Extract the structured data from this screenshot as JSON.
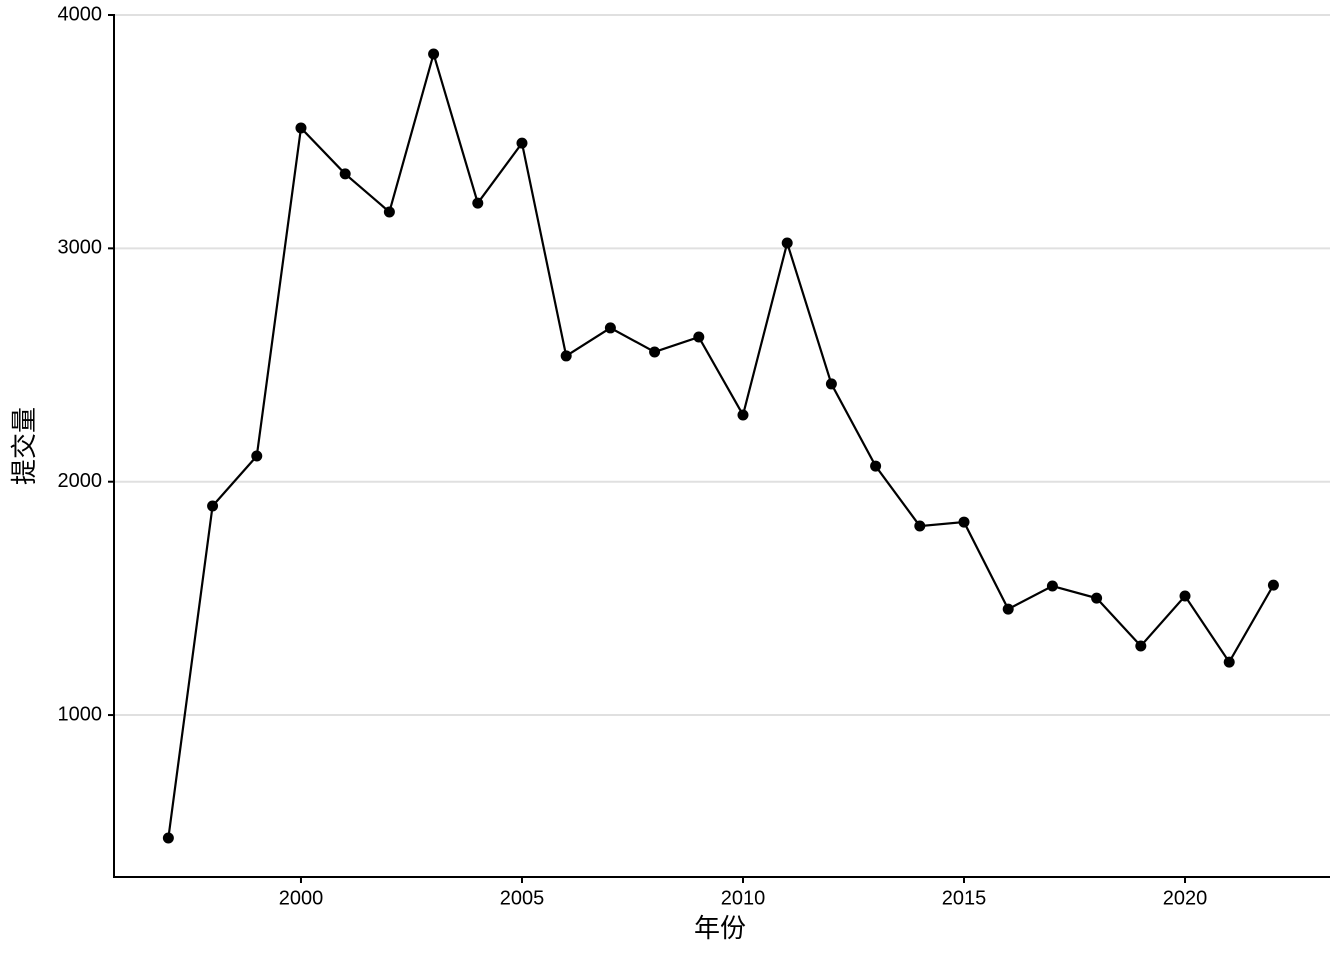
{
  "chart_data": {
    "type": "line",
    "x_label": "年份",
    "y_label": "提交量",
    "x": [
      1997,
      1998,
      1999,
      2000,
      2001,
      2002,
      2003,
      2004,
      2005,
      2006,
      2007,
      2008,
      2009,
      2010,
      2011,
      2012,
      2013,
      2014,
      2015,
      2016,
      2017,
      2018,
      2019,
      2020,
      2021,
      2022
    ],
    "series": [
      {
        "color": "#000000",
        "values": [
          473,
          1896,
          2110,
          3516,
          3319,
          3156,
          3833,
          3194,
          3451,
          2539,
          2659,
          2556,
          2620,
          2286,
          3023,
          2419,
          2067,
          1810,
          1827,
          1454,
          1553,
          1501,
          1296,
          1510,
          1227,
          1557
        ]
      }
    ],
    "xlim": [
      1995.77,
      2023.28
    ],
    "xticks": [
      2000,
      2005,
      2010,
      2015,
      2020
    ],
    "ylim": [
      306,
      4000
    ],
    "yticks": [
      1000,
      2000,
      3000,
      4000
    ],
    "grid": true
  }
}
